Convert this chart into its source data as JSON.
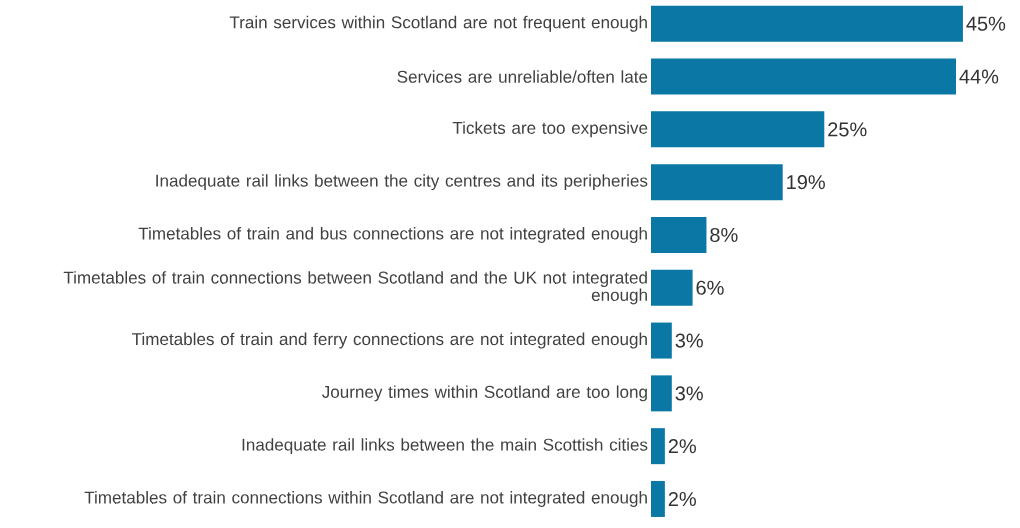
{
  "chart_data": {
    "type": "bar",
    "orientation": "horizontal",
    "color": "#0a77a5",
    "categories": [
      "Train services within Scotland are not frequent enough",
      "Services are unreliable/often late",
      "Tickets are too expensive",
      "Inadequate rail links between the city centres and its peripheries",
      "Timetables of train and bus connections are not integrated enough",
      "Timetables of train connections between Scotland and the UK not integrated enough",
      "Timetables of train and ferry connections are not integrated enough",
      "Journey times within Scotland are too long",
      "Inadequate rail links between the main Scottish cities",
      "Timetables of train connections within Scotland are not integrated enough"
    ],
    "values": [
      45,
      44,
      25,
      19,
      8,
      6,
      3,
      3,
      2,
      2
    ],
    "value_labels": [
      "45%",
      "44%",
      "25%",
      "19%",
      "8%",
      "6%",
      "3%",
      "3%",
      "2%",
      "2%"
    ]
  }
}
